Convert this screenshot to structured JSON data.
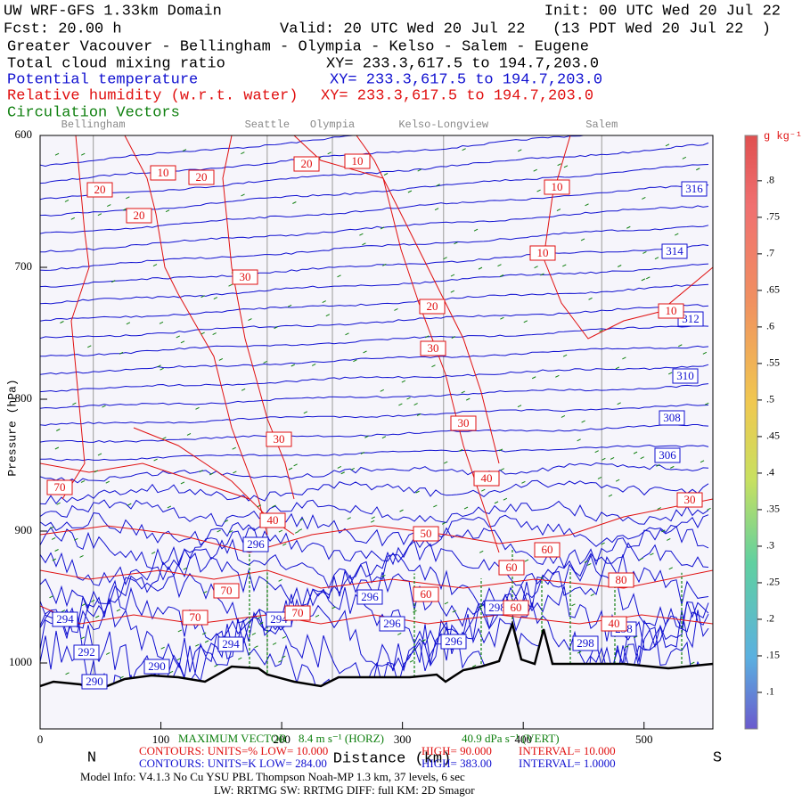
{
  "chart_data": {
    "type": "cross-section",
    "title": "UW WRF-GFS 1.33km Domain",
    "init": "Init: 00 UTC Wed 20 Jul 22",
    "fcst": "Fcst:   20.00 h",
    "valid": "Valid: 20 UTC Wed 20 Jul 22   (13 PDT Wed 20 Jul 22  )",
    "region": "Greater Vacouver - Bellingham - Olympia - Kelso - Salem - Eugene",
    "fields": [
      {
        "name": "Total cloud mixing ratio",
        "color": "#000000",
        "xy": "XY= 233.3,617.5 to 194.7,203.0"
      },
      {
        "name": "Potential temperature",
        "color": "#1010d0",
        "xy": "XY= 233.3,617.5 to 194.7,203.0"
      },
      {
        "name": "Relative humidity (w.r.t. water)",
        "color": "#e01010",
        "xy": "XY= 233.3,617.5 to 194.7,203.0"
      },
      {
        "name": "Circulation Vectors",
        "color": "#108010"
      }
    ],
    "stations": [
      "Bellingham",
      "Seattle",
      "Olympia",
      "Kelso-Longview",
      "Salem"
    ],
    "xlim": [
      0,
      557
    ],
    "xticks": [
      0,
      100,
      200,
      300,
      400,
      500
    ],
    "ylim": [
      600,
      1050
    ],
    "yticks": [
      600,
      700,
      800,
      900,
      1000
    ],
    "ylabel": "Pressure (hPa)",
    "xlabel": "Distance (km)",
    "x_start": "N",
    "x_end": "S",
    "colorbar": {
      "label": "g kg⁻¹",
      "lim": [
        0.05,
        0.862
      ],
      "ticks": [
        {
          "value": 0.1,
          "label": ".1"
        },
        {
          "value": 0.15,
          "label": ".15"
        },
        {
          "value": 0.2,
          "label": ".2"
        },
        {
          "value": 0.25,
          "label": ".25"
        },
        {
          "value": 0.3,
          "label": ".3"
        },
        {
          "value": 0.35,
          "label": ".35"
        },
        {
          "value": 0.4,
          "label": ".4"
        },
        {
          "value": 0.45,
          "label": ".45"
        },
        {
          "value": 0.5,
          "label": ".5"
        },
        {
          "value": 0.55,
          "label": ".55"
        },
        {
          "value": 0.6,
          "label": ".6"
        },
        {
          "value": 0.65,
          "label": ".65"
        },
        {
          "value": 0.7,
          "label": ".7"
        },
        {
          "value": 0.75,
          "label": ".75"
        },
        {
          "value": 0.8,
          "label": ".8"
        }
      ]
    },
    "theta_labels": [
      316,
      314,
      312,
      310,
      308,
      306,
      296,
      294,
      292,
      290,
      290,
      294,
      294,
      296,
      296,
      296,
      298,
      298,
      298
    ],
    "rh_labels": [
      20,
      10,
      20,
      20,
      20,
      10,
      10,
      10,
      30,
      20,
      10,
      30,
      30,
      30,
      40,
      70,
      30,
      40,
      50,
      60,
      60,
      80,
      70,
      60,
      70,
      70,
      60,
      40
    ],
    "footer": [
      {
        "text": "MAXIMUM VECTOR",
        "color": "#108010"
      },
      {
        "text": "8.4 m s⁻¹ (HORZ)",
        "color": "#108010"
      },
      {
        "text": "40.9 dPa s⁻¹ (VERT)",
        "color": "#108010"
      },
      {
        "text": "CONTOURS:  UNITS=%  LOW=   10.000",
        "color": "#e01010"
      },
      {
        "text": "HIGH=   90.000",
        "color": "#e01010"
      },
      {
        "text": "INTERVAL=    10.000",
        "color": "#e01010"
      },
      {
        "text": "CONTOURS:  UNITS=K  LOW=   284.00",
        "color": "#1010d0"
      },
      {
        "text": "HIGH=   383.00",
        "color": "#1010d0"
      },
      {
        "text": "INTERVAL=    1.0000",
        "color": "#1010d0"
      },
      {
        "text": "Model Info: V4.1.3    No Cu    YSU PBL  Thompson      Noah-MP    1.3 km,   37 levels,     6 sec",
        "color": "#000000"
      },
      {
        "text": "LW: RRTMG  SW: RRTMG    DIFF: full    KM: 2D Smagor",
        "color": "#000000"
      }
    ]
  }
}
